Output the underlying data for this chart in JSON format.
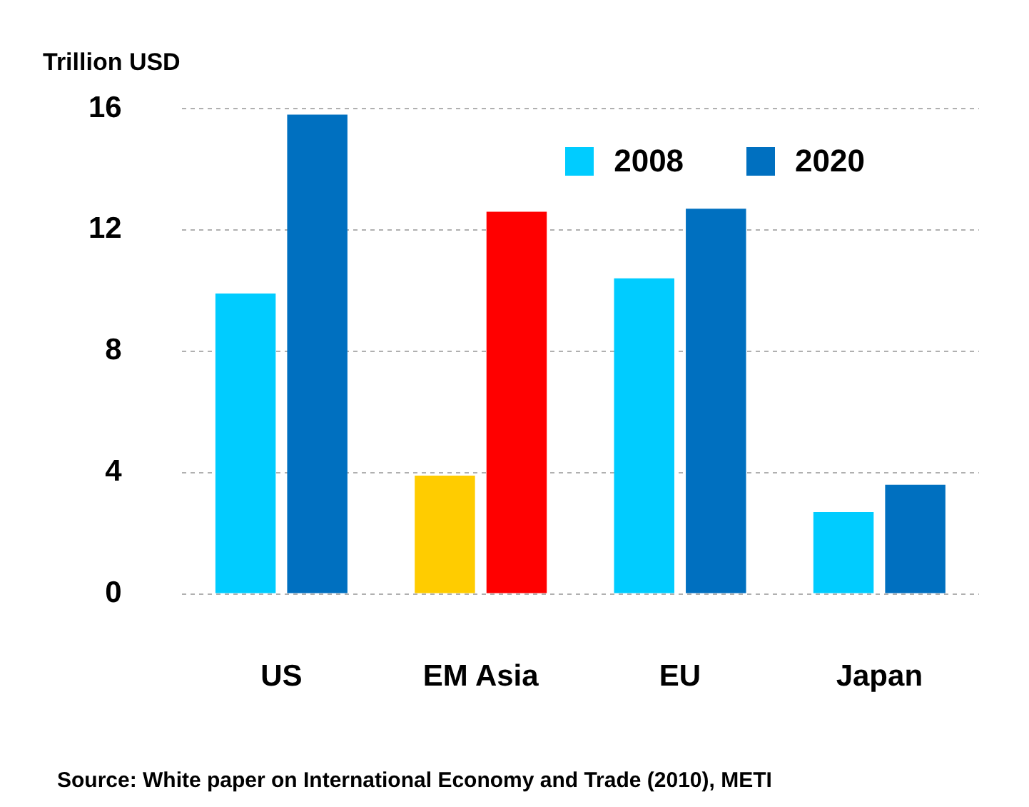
{
  "chart_data": {
    "type": "bar",
    "ylabel": "Trillion USD",
    "categories": [
      "US",
      "EM Asia",
      "EU",
      "Japan"
    ],
    "series": [
      {
        "name": "2008",
        "color": "#00ccff",
        "colors": [
          "#00ccff",
          "#ffcc00",
          "#00ccff",
          "#00ccff"
        ],
        "values": [
          9.9,
          3.9,
          10.4,
          2.7
        ]
      },
      {
        "name": "2020",
        "color": "#0070c0",
        "colors": [
          "#0070c0",
          "#ff0000",
          "#0070c0",
          "#0070c0"
        ],
        "values": [
          15.8,
          12.6,
          12.7,
          3.6
        ]
      }
    ],
    "ylim": [
      0,
      16
    ],
    "yticks": [
      0,
      4,
      8,
      12,
      16
    ],
    "grid": "y",
    "legend": "top right",
    "annotations": [
      "Source: White paper on International Economy and Trade (2010), METI"
    ]
  }
}
